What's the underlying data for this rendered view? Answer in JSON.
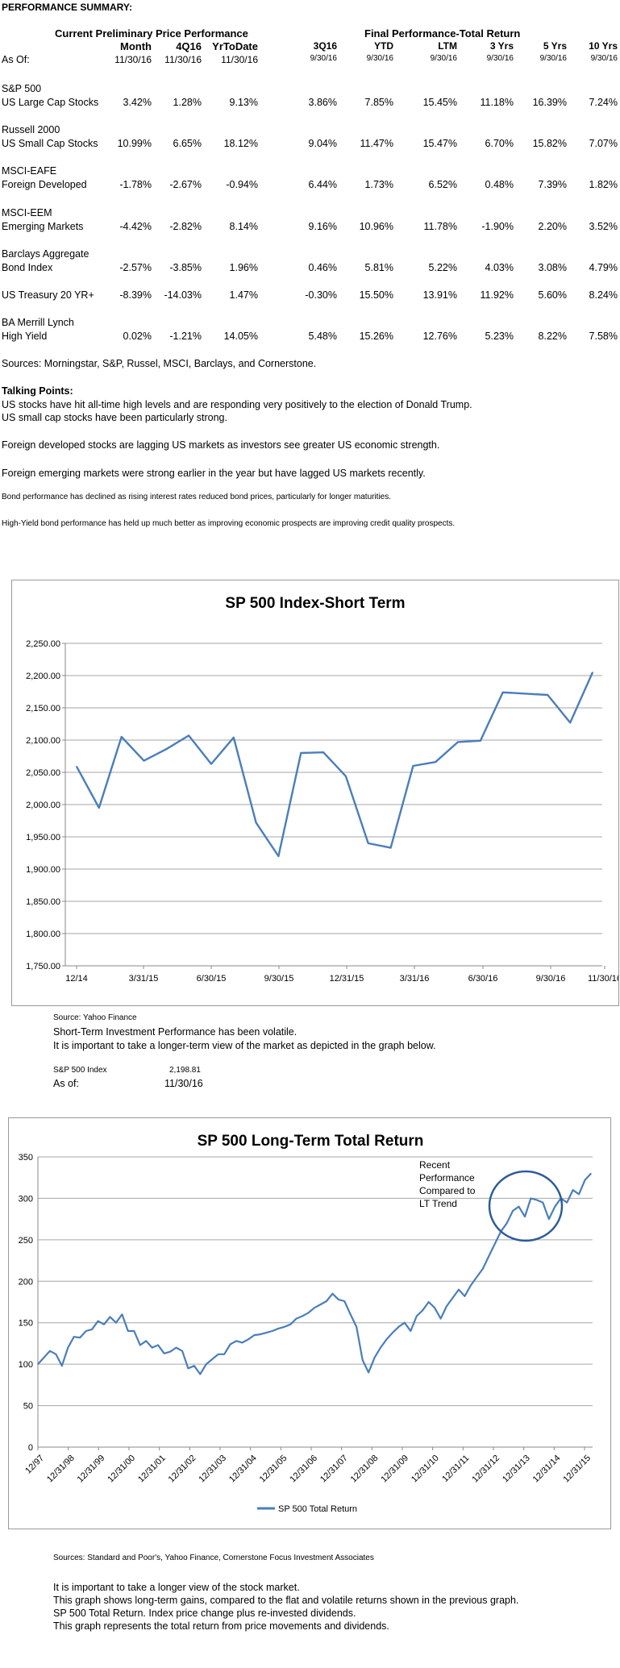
{
  "perf": {
    "title": "PERFORMANCE SUMMARY:",
    "group1": "Current Preliminary Price Performance",
    "group2": "Final Performance-Total Return",
    "as_of_label": "As Of:",
    "columns": [
      {
        "label": "Month",
        "date": "11/30/16"
      },
      {
        "label": "4Q16",
        "date": "11/30/16"
      },
      {
        "label": "YrToDate",
        "date": "11/30/16"
      },
      {
        "label": "3Q16",
        "date": "9/30/16"
      },
      {
        "label": "YTD",
        "date": "9/30/16"
      },
      {
        "label": "LTM",
        "date": "9/30/16"
      },
      {
        "label": "3 Yrs",
        "date": "9/30/16"
      },
      {
        "label": "5 Yrs",
        "date": "9/30/16"
      },
      {
        "label": "10 Yrs",
        "date": "9/30/16"
      }
    ],
    "rows": [
      {
        "name1": "S&P 500",
        "name2": "US Large Cap Stocks",
        "values": [
          "3.42%",
          "1.28%",
          "9.13%",
          "3.86%",
          "7.85%",
          "15.45%",
          "11.18%",
          "16.39%",
          "7.24%"
        ]
      },
      {
        "name1": "Russell 2000",
        "name2": "US Small Cap Stocks",
        "values": [
          "10.99%",
          "6.65%",
          "18.12%",
          "9.04%",
          "11.47%",
          "15.47%",
          "6.70%",
          "15.82%",
          "7.07%"
        ]
      },
      {
        "name1": "MSCI-EAFE",
        "name2": "Foreign Developed",
        "values": [
          "-1.78%",
          "-2.67%",
          "-0.94%",
          "6.44%",
          "1.73%",
          "6.52%",
          "0.48%",
          "7.39%",
          "1.82%"
        ]
      },
      {
        "name1": "MSCI-EEM",
        "name2": "Emerging Markets",
        "values": [
          "-4.42%",
          "-2.82%",
          "8.14%",
          "9.16%",
          "10.96%",
          "11.78%",
          "-1.90%",
          "2.20%",
          "3.52%"
        ]
      },
      {
        "name1": "Barclays Aggregate",
        "name2": "Bond Index",
        "values": [
          "-2.57%",
          "-3.85%",
          "1.96%",
          "0.46%",
          "5.81%",
          "5.22%",
          "4.03%",
          "3.08%",
          "4.79%"
        ]
      },
      {
        "name1": "",
        "name2": "US Treasury 20 YR+",
        "values": [
          "-8.39%",
          "-14.03%",
          "1.47%",
          "-0.30%",
          "15.50%",
          "13.91%",
          "11.92%",
          "5.60%",
          "8.24%"
        ]
      },
      {
        "name1": "BA Merrill Lynch",
        "name2": "High Yield",
        "values": [
          "0.02%",
          "-1.21%",
          "14.05%",
          "5.48%",
          "15.26%",
          "12.76%",
          "5.23%",
          "8.22%",
          "7.58%"
        ]
      }
    ],
    "sources": "Sources:  Morningstar, S&P, Russel, MSCI, Barclays, and Cornerstone."
  },
  "talking": {
    "title": "Talking Points:",
    "p1a": "US stocks have hit all-time high levels and are responding very positively to the election of Donald Trump.",
    "p1b": "US small cap stocks have been particularly strong.",
    "p2": "Foreign developed stocks are lagging US markets as investors see greater US economic strength.",
    "p3": "Foreign emerging markets were strong earlier in the year but have lagged US markets recently.",
    "p4": "Bond performance has declined as rising interest rates reduced bond prices, particularly for longer maturities.",
    "p5": "High-Yield bond performance has held up much better as improving economic prospects are improving credit quality prospects."
  },
  "chart1_notes": {
    "source": "Source:  Yahoo Finance",
    "line1": "Short-Term Investment Performance has been volatile.",
    "line2": "It is important to take a longer-term view of the market as depicted in the graph below.",
    "index_label": "S&P 500 Index",
    "index_value": "2,198.81",
    "as_of_label": "As of:",
    "as_of_value": "11/30/16"
  },
  "chart2_notes": {
    "sources": "Sources:  Standard and Poor's, Yahoo Finance, Cornerstone Focus Investment Associates",
    "line1": "It is important to take a longer view of the stock market.",
    "line2": "This graph shows long-term gains, compared to the flat and volatile returns shown in the previous graph.",
    "line3": "SP 500 Total Return.  Index price change plus re-invested dividends.",
    "line4": "This graph represents the total return from price movements and dividends."
  },
  "chart_data": [
    {
      "type": "line",
      "title": "SP 500 Index-Short Term",
      "x_tick_labels": [
        "12/14",
        "3/31/15",
        "6/30/15",
        "9/30/15",
        "12/31/15",
        "3/31/16",
        "6/30/16",
        "9/30/16",
        "11/30/16"
      ],
      "y_tick_labels": [
        "1,750.00",
        "1,800.00",
        "1,850.00",
        "1,900.00",
        "1,950.00",
        "2,000.00",
        "2,050.00",
        "2,100.00",
        "2,150.00",
        "2,200.00",
        "2,250.00"
      ],
      "ylim": [
        1750,
        2250
      ],
      "color": "#4a7ebb",
      "series": [
        {
          "values": [
            2059,
            1995,
            2105,
            2068,
            2086,
            2107,
            2063,
            2104,
            1972,
            1920,
            2080,
            2081,
            2044,
            1940,
            1933,
            2060,
            2066,
            2097,
            2099,
            2174,
            2172,
            2170,
            2127,
            2205
          ]
        }
      ]
    },
    {
      "type": "line",
      "title": "SP 500 Long-Term Total Return",
      "x_tick_labels": [
        "12/97",
        "12/31/98",
        "12/31/99",
        "12/31/00",
        "12/31/01",
        "12/31/02",
        "12/31/03",
        "12/31/04",
        "12/31/05",
        "12/31/06",
        "12/31/07",
        "12/31/08",
        "12/31/09",
        "12/31/10",
        "12/31/11",
        "12/31/12",
        "12/31/13",
        "12/31/14",
        "12/31/15"
      ],
      "y_tick_labels": [
        "0",
        "50",
        "100",
        "150",
        "200",
        "250",
        "300",
        "350"
      ],
      "ylim": [
        0,
        350
      ],
      "annotation": [
        "Recent",
        "Performance",
        "Compared to",
        "LT Trend"
      ],
      "legend": "SP 500 Total Return",
      "legend_position": "bottom",
      "color": "#4a7ebb",
      "series": [
        {
          "name": "SP 500 Total Return",
          "values": [
            100,
            108,
            116,
            112,
            98,
            120,
            133,
            132,
            140,
            142,
            152,
            148,
            157,
            150,
            160,
            140,
            140,
            123,
            128,
            120,
            123,
            113,
            115,
            120,
            116,
            95,
            98,
            88,
            100,
            106,
            112,
            112,
            124,
            128,
            126,
            130,
            135,
            136,
            138,
            140,
            143,
            145,
            148,
            155,
            158,
            162,
            168,
            172,
            176,
            185,
            178,
            176,
            160,
            145,
            105,
            90,
            108,
            120,
            130,
            138,
            145,
            150,
            140,
            158,
            165,
            175,
            168,
            155,
            170,
            180,
            190,
            182,
            195,
            205,
            215,
            230,
            245,
            260,
            270,
            285,
            290,
            278,
            300,
            298,
            295,
            275,
            290,
            300,
            295,
            310,
            305,
            322,
            330
          ]
        }
      ]
    }
  ]
}
